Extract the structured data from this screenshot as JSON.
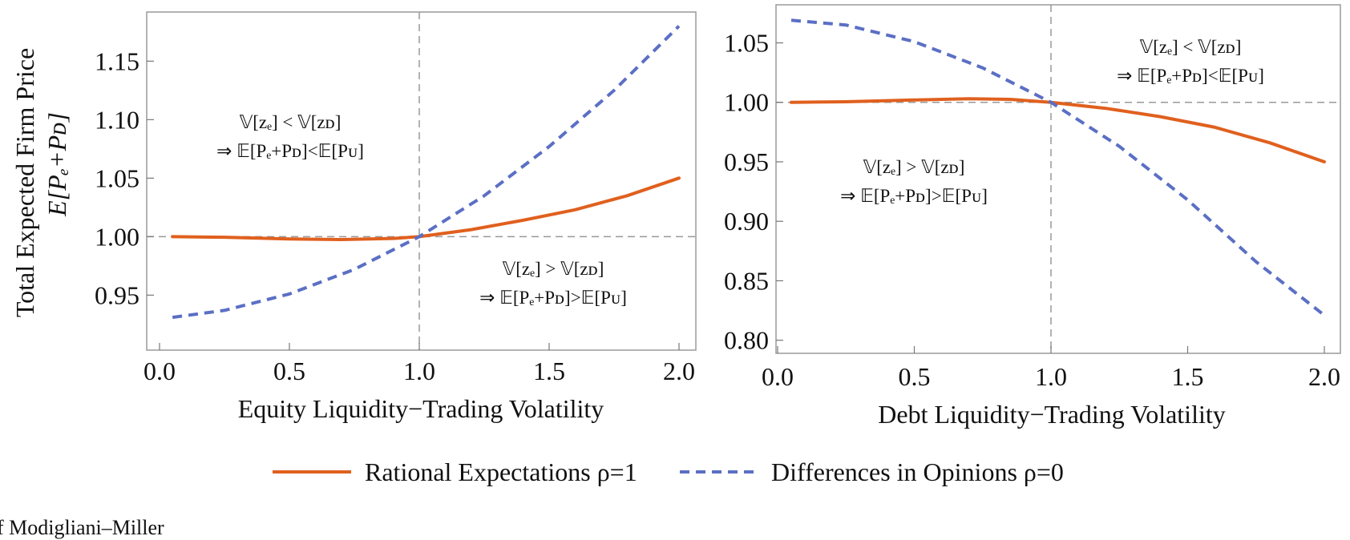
{
  "chart_data": [
    {
      "type": "line",
      "xlabel": "Equity Liquidity−Trading Volatility",
      "ylabel_line1": "Total Expected Firm Price",
      "ylabel_line2": "E[Pₑ+Pᴅ]",
      "xlim": [
        -0.05,
        2.04
      ],
      "ylim": [
        0.903,
        1.192
      ],
      "xticks": [
        0.0,
        0.5,
        1.0,
        1.5,
        2.0
      ],
      "xtick_labels": [
        "0.0",
        "0.5",
        "1.0",
        "1.5",
        "2.0"
      ],
      "yticks": [
        0.95,
        1.0,
        1.05,
        1.1,
        1.15
      ],
      "ytick_labels": [
        "0.95",
        "1.00",
        "1.05",
        "1.10",
        "1.15"
      ],
      "ref_x": 1.0,
      "ref_y": 1.0,
      "series": [
        {
          "name": "Rational Expectations ρ=1",
          "style": "solid",
          "color": "#E0601E",
          "x": [
            0.05,
            0.25,
            0.5,
            0.7,
            0.9,
            1.0,
            1.2,
            1.4,
            1.6,
            1.8,
            2.0
          ],
          "y": [
            1.0,
            0.9995,
            0.998,
            0.9975,
            0.9985,
            1.0,
            1.006,
            1.014,
            1.023,
            1.035,
            1.05
          ]
        },
        {
          "name": "Differences in Opinions ρ=0",
          "style": "dashed",
          "color": "#5B6FC4",
          "x": [
            0.05,
            0.25,
            0.5,
            0.75,
            1.0,
            1.25,
            1.5,
            1.75,
            2.0
          ],
          "y": [
            0.931,
            0.937,
            0.951,
            0.972,
            1.0,
            1.035,
            1.077,
            1.125,
            1.18
          ]
        }
      ],
      "annotations": [
        {
          "line1": "𝕍[zₑ] < 𝕍[zᴅ]",
          "line2": "⇒ 𝔼[Pₑ+Pᴅ]<𝔼[Pᴜ]"
        },
        {
          "line1": "𝕍[zₑ] > 𝕍[zᴅ]",
          "line2": "⇒ 𝔼[Pₑ+Pᴅ]>𝔼[Pᴜ]"
        }
      ]
    },
    {
      "type": "line",
      "xlabel": "Debt Liquidity−Trading Volatility",
      "xlim": [
        -0.05,
        2.04
      ],
      "ylim": [
        0.789,
        1.082
      ],
      "xticks": [
        0.0,
        0.5,
        1.0,
        1.5,
        2.0
      ],
      "xtick_labels": [
        "0.0",
        "0.5",
        "1.0",
        "1.5",
        "2.0"
      ],
      "yticks": [
        0.8,
        0.85,
        0.9,
        0.95,
        1.0,
        1.05
      ],
      "ytick_labels": [
        "0.80",
        "0.85",
        "0.90",
        "0.95",
        "1.00",
        "1.05"
      ],
      "ref_x": 1.0,
      "ref_y": 1.0,
      "series": [
        {
          "name": "Rational Expectations ρ=1",
          "style": "solid",
          "color": "#E0601E",
          "x": [
            0.05,
            0.25,
            0.5,
            0.7,
            0.85,
            1.0,
            1.2,
            1.4,
            1.6,
            1.8,
            2.0
          ],
          "y": [
            1.0,
            1.0005,
            1.002,
            1.003,
            1.0025,
            1.0,
            0.995,
            0.988,
            0.979,
            0.966,
            0.95
          ]
        },
        {
          "name": "Differences in Opinions ρ=0",
          "style": "dashed",
          "color": "#5B6FC4",
          "x": [
            0.05,
            0.25,
            0.5,
            0.75,
            1.0,
            1.25,
            1.5,
            1.75,
            2.0
          ],
          "y": [
            1.069,
            1.065,
            1.051,
            1.029,
            1.0,
            0.963,
            0.918,
            0.866,
            0.821
          ]
        }
      ],
      "annotations": [
        {
          "line1": "𝕍[zₑ] < 𝕍[zᴅ]",
          "line2": "⇒ 𝔼[Pₑ+Pᴅ]<𝔼[Pᴜ]"
        },
        {
          "line1": "𝕍[zₑ] > 𝕍[zᴅ]",
          "line2": "⇒ 𝔼[Pₑ+Pᴅ]>𝔼[Pᴜ]"
        }
      ]
    }
  ],
  "legend": [
    {
      "label": "Rational Expectations ρ=1",
      "style": "solid",
      "color": "#E0601E"
    },
    {
      "label": "Differences in Opinions ρ=0",
      "style": "dashed",
      "color": "#5B6FC4"
    }
  ],
  "caption": "f Modigliani–Miller"
}
